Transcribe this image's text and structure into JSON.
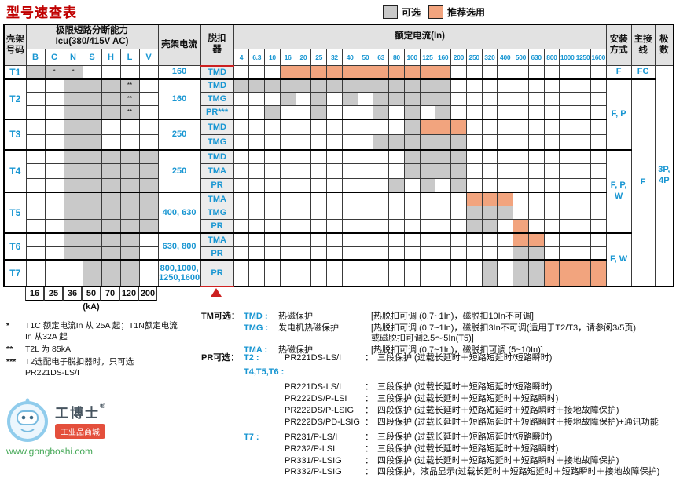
{
  "title": "型号速查表",
  "legend": {
    "optional": "可选",
    "recommended": "推荐选用"
  },
  "colors": {
    "optional": "#c9c9c9",
    "recommended": "#f2a47e",
    "accent_blue": "#1896d2",
    "title_red": "#c00000",
    "highlight_red": "#cc2020"
  },
  "table": {
    "headers": {
      "frame_no": "壳架\n号码",
      "icu_group": "极限短路分断能力",
      "icu_sub": "Icu(380/415V AC)",
      "frame_current": "壳架电流",
      "trip": "脱扣\n器",
      "rated_current": "额定电流(In)",
      "install": "安装\n方式",
      "wiring": "主接\n线",
      "poles": "极\n数"
    },
    "icu_labels": [
      "B",
      "C",
      "N",
      "S",
      "H",
      "L",
      "V"
    ],
    "current_labels": [
      "4",
      "6.3",
      "10",
      "16",
      "20",
      "25",
      "32",
      "40",
      "50",
      "63",
      "80",
      "100",
      "125",
      "160",
      "200",
      "250",
      "320",
      "400",
      "500",
      "630",
      "800",
      "1000",
      "1250",
      "1600"
    ],
    "ka_values": [
      "16",
      "25",
      "36",
      "50",
      "70",
      "120",
      "200"
    ],
    "ka_unit": "(kA)",
    "sections": [
      {
        "frame": "T1",
        "current": "160",
        "icu_gray": [
          "B",
          "C",
          "N"
        ],
        "icu_marks": {
          "C": "*",
          "N": "*"
        },
        "rows": [
          {
            "trip": "TMD",
            "gray": [],
            "orange": [
              3,
              4,
              5,
              6,
              7,
              8,
              9,
              10,
              11,
              12,
              13
            ]
          }
        ]
      },
      {
        "frame": "T2",
        "current": "160",
        "icu_gray": [
          "N",
          "S",
          "H",
          "L"
        ],
        "icu_marks": {
          "L": "**"
        },
        "rows": [
          {
            "trip": "TMD",
            "gray": [
              0,
              1,
              2,
              3,
              4,
              5,
              6,
              7,
              8,
              9,
              10,
              11,
              12,
              13
            ],
            "orange": []
          },
          {
            "trip": "TMG",
            "gray": [
              3,
              5,
              7,
              9,
              10,
              11,
              12,
              13
            ],
            "orange": []
          },
          {
            "trip": "PR***",
            "gray": [
              2,
              5,
              9,
              11,
              13
            ],
            "orange": []
          }
        ]
      },
      {
        "frame": "T3",
        "current": "250",
        "icu_gray": [
          "N",
          "S"
        ],
        "icu_marks": {},
        "rows": [
          {
            "trip": "TMD",
            "gray": [
              11
            ],
            "orange": [
              12,
              13,
              14
            ]
          },
          {
            "trip": "TMG",
            "gray": [
              9,
              10,
              11,
              12,
              13,
              14
            ],
            "orange": []
          }
        ]
      },
      {
        "frame": "T4",
        "current": "250",
        "icu_gray": [
          "N",
          "S",
          "H",
          "L",
          "V"
        ],
        "icu_marks": {},
        "rows": [
          {
            "trip": "TMD",
            "gray": [
              11,
              12,
              13,
              14
            ],
            "orange": []
          },
          {
            "trip": "TMA",
            "gray": [
              11,
              12,
              13,
              14
            ],
            "orange": []
          },
          {
            "trip": "PR",
            "gray": [
              10,
              12,
              14
            ],
            "orange": []
          }
        ]
      },
      {
        "frame": "T5",
        "current": "400, 630",
        "icu_gray": [
          "N",
          "S",
          "H",
          "L",
          "V"
        ],
        "icu_marks": {},
        "rows": [
          {
            "trip": "TMA",
            "gray": [],
            "orange": [
              15,
              16,
              17
            ]
          },
          {
            "trip": "TMG",
            "gray": [
              15,
              16,
              17
            ],
            "orange": []
          },
          {
            "trip": "PR",
            "gray": [
              15,
              16
            ],
            "orange": [
              18
            ]
          }
        ]
      },
      {
        "frame": "T6",
        "current": "630, 800",
        "icu_gray": [
          "N",
          "S",
          "H",
          "L"
        ],
        "icu_marks": {},
        "rows": [
          {
            "trip": "TMA",
            "gray": [],
            "orange": [
              18,
              19
            ]
          },
          {
            "trip": "PR",
            "gray": [
              18,
              19
            ],
            "orange": []
          }
        ]
      },
      {
        "frame": "T7",
        "current": "800,1000,\n1250,1600",
        "icu_gray": [
          "S",
          "H",
          "L"
        ],
        "icu_marks": {},
        "rows": [
          {
            "trip": "PR",
            "gray": [
              16,
              18,
              19
            ],
            "orange": [
              20,
              21,
              22,
              23
            ]
          }
        ]
      }
    ],
    "install_cells": [
      {
        "span": 1,
        "label": "F"
      },
      {
        "span": 5,
        "label": "F, P"
      },
      {
        "span": 6,
        "label": "F, P,\nW"
      },
      {
        "span": 3,
        "label": "F, W"
      }
    ],
    "wiring_cells": [
      {
        "span": 1,
        "label": "FC"
      },
      {
        "span": 15,
        "label": "F"
      }
    ],
    "poles_cells": [
      {
        "span": 16,
        "label": "3P,\n4P"
      }
    ]
  },
  "footnotes": [
    {
      "mark": "*",
      "text": "T1C 额定电流In 从 25A 起；T1N额定电流\nIn 从32A 起"
    },
    {
      "mark": "**",
      "text": "T2L 为 85kA"
    },
    {
      "mark": "***",
      "text": "T2选配电子脱扣器时，只可选\nPR221DS-LS/I"
    }
  ],
  "tm_block": {
    "label": "TM可选：",
    "rows": [
      {
        "name": "TMD :",
        "desc": "热磁保护",
        "detail": "[热脱扣可调 (0.7~1In)，磁脱扣10In不可调]"
      },
      {
        "name": "TMG :",
        "desc": "发电机热磁保护",
        "detail": "[热脱扣可调 (0.7~1In)，磁脱扣3In不可调(适用于T2/T3，请参阅3/5页)\n或磁脱扣可调2.5～5In(T5)]"
      },
      {
        "name": "TMA :",
        "desc": "热磁保护",
        "detail": "[热脱扣可调 (0.7~1In)，磁脱扣可调 (5~10In)]"
      }
    ]
  },
  "pr_block": {
    "label": "PR可选：",
    "sep": "：",
    "groups": [
      {
        "head": "T2 :",
        "rows": [
          {
            "name": "PR221DS-LS/I",
            "desc": "三段保护 (过载长延时＋短路短延时/短路瞬时)"
          }
        ]
      },
      {
        "head": "T4,T5,T6 :",
        "rows": [
          {
            "name": "PR221DS-LS/I",
            "desc": "三段保护 (过载长延时＋短路短延时/短路瞬时)"
          },
          {
            "name": "PR222DS/P-LSI",
            "desc": "三段保护 (过载长延时＋短路短延时＋短路瞬时)"
          },
          {
            "name": "PR222DS/P-LSIG",
            "desc": "四段保护 (过载长延时＋短路短延时＋短路瞬时＋接地故障保护)"
          },
          {
            "name": "PR222DS/PD-LSIG",
            "desc": "四段保护 (过载长延时＋短路短延时＋短路瞬时＋接地故障保护)+通讯功能"
          }
        ]
      },
      {
        "head": "T7 :",
        "rows": [
          {
            "name": "PR231/P-LS/I",
            "desc": "三段保护 (过载长延时＋短路短延时/短路瞬时)"
          },
          {
            "name": "PR232/P-LSI",
            "desc": "三段保护 (过载长延时＋短路短延时＋短路瞬时)"
          },
          {
            "name": "PR331/P-LSIG",
            "desc": "四段保护 (过载长延时＋短路短延时＋短路瞬时＋接地故障保护)"
          },
          {
            "name": "PR332/P-LSIG",
            "desc": "四段保护，液晶显示(过载长延时＋短路短延时＋短路瞬时＋接地故障保护)"
          }
        ]
      }
    ]
  },
  "watermark": {
    "name": "工博士",
    "tagline": "工业品商城",
    "url": "www.gongboshi.com",
    "reg": "®"
  }
}
